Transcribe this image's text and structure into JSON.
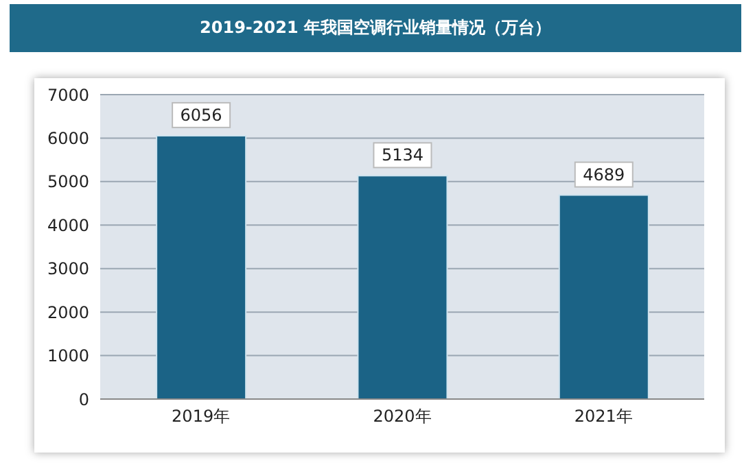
{
  "chart_data": {
    "type": "bar",
    "title": "2019-2021 年我国空调行业销量情况（万台）",
    "categories": [
      "2019年",
      "2020年",
      "2021年"
    ],
    "values": [
      6056,
      5134,
      4689
    ],
    "color": "#1b6386",
    "ylim": [
      0,
      7000
    ],
    "yticks": [
      0,
      1000,
      2000,
      3000,
      4000,
      5000,
      6000,
      7000
    ],
    "grid": "y",
    "data_labels": true
  }
}
